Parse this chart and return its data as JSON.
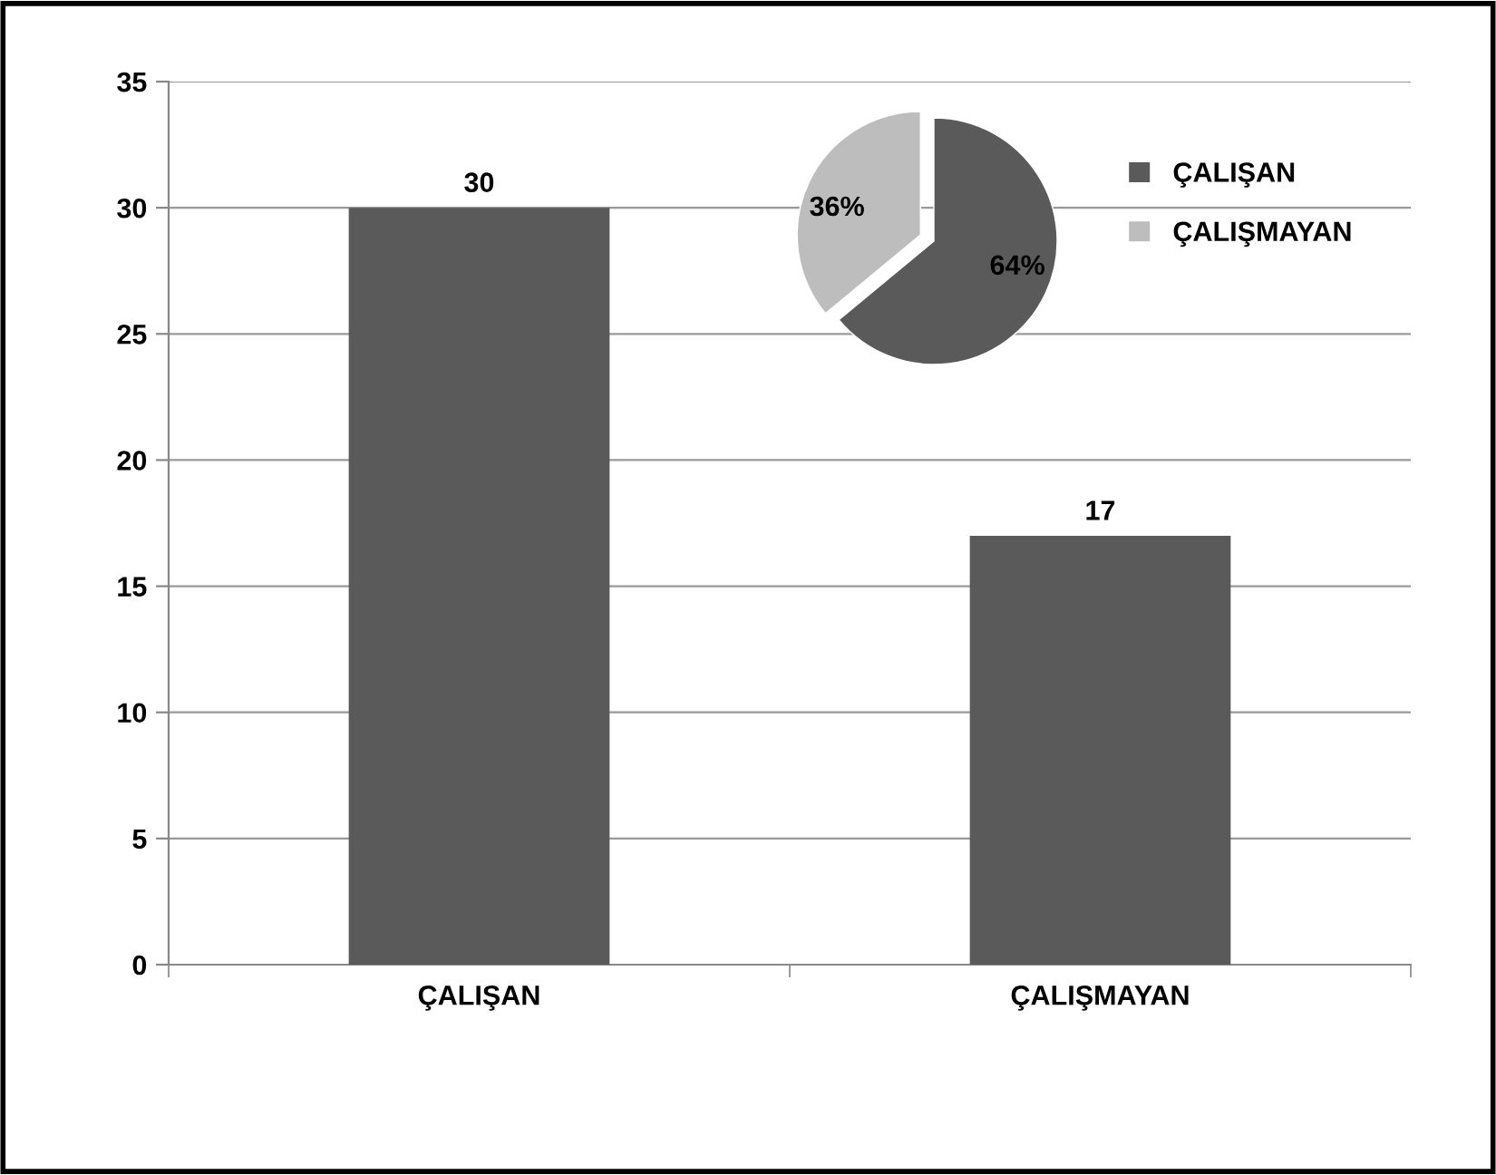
{
  "chart_data": [
    {
      "type": "bar",
      "categories": [
        "ÇALIŞAN",
        "ÇALIŞMAYAN"
      ],
      "values": [
        30,
        17
      ],
      "color": "#5a5a5a",
      "ylim": [
        0,
        35
      ],
      "yticks": [
        0,
        5,
        10,
        15,
        20,
        25,
        30,
        35
      ],
      "grid": "y",
      "data_labels": true
    },
    {
      "type": "pie",
      "categories": [
        "ÇALIŞAN",
        "ÇALIŞMAYAN"
      ],
      "values": [
        64,
        36
      ],
      "colors": [
        "#5a5a5a",
        "#bdbdbd"
      ],
      "value_labels": [
        "64%",
        "36%"
      ],
      "legend": "right"
    }
  ]
}
